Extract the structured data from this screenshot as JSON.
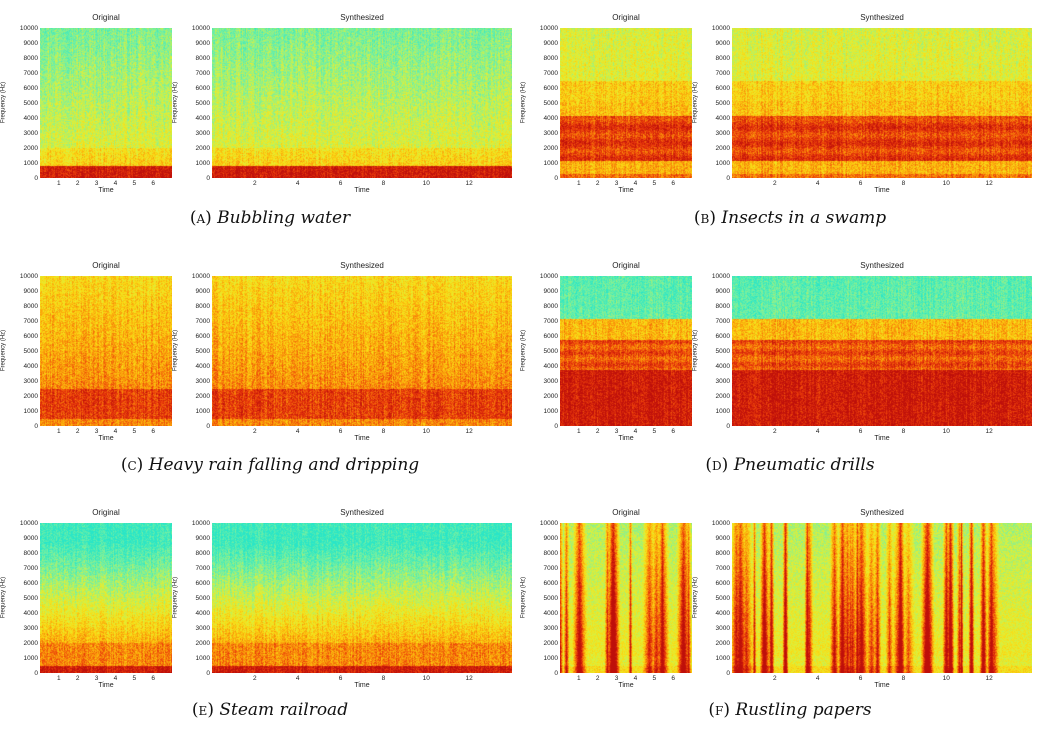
{
  "common": {
    "original_title": "Original",
    "synthesized_title": "Synthesized",
    "ylabel": "Frequency (Hz)",
    "xlabel": "Time",
    "yticks": [
      "0",
      "1000",
      "2000",
      "3000",
      "4000",
      "5000",
      "6000",
      "7000",
      "8000",
      "9000",
      "10000"
    ],
    "orig_xticks": [
      "1",
      "2",
      "3",
      "4",
      "5",
      "6"
    ],
    "synth_xticks": [
      "2",
      "4",
      "6",
      "8",
      "10",
      "12"
    ]
  },
  "figures": [
    {
      "id": "a",
      "label": "(a)",
      "caption": "Bubbling water",
      "profile": "bubbling"
    },
    {
      "id": "b",
      "label": "(b)",
      "caption": "Insects in a swamp",
      "profile": "insects"
    },
    {
      "id": "c",
      "label": "(c)",
      "caption": "Heavy rain falling and dripping",
      "profile": "rain"
    },
    {
      "id": "d",
      "label": "(d)",
      "caption": "Pneumatic drills",
      "profile": "drills"
    },
    {
      "id": "e",
      "label": "(e)",
      "caption": "Steam railroad",
      "profile": "railroad"
    },
    {
      "id": "f",
      "label": "(f)",
      "caption": "Rustling papers",
      "profile": "papers"
    }
  ],
  "chart_data": [
    {
      "type": "heatmap",
      "title": "Original",
      "xlabel": "Time",
      "ylabel": "Frequency (Hz)",
      "xlim": [
        0,
        7
      ],
      "ylim": [
        0,
        10000
      ],
      "colormap": "jet"
    },
    {
      "type": "heatmap",
      "title": "Synthesized",
      "xlabel": "Time",
      "ylabel": "Frequency (Hz)",
      "xlim": [
        0,
        14
      ],
      "ylim": [
        0,
        10000
      ],
      "colormap": "jet"
    }
  ]
}
